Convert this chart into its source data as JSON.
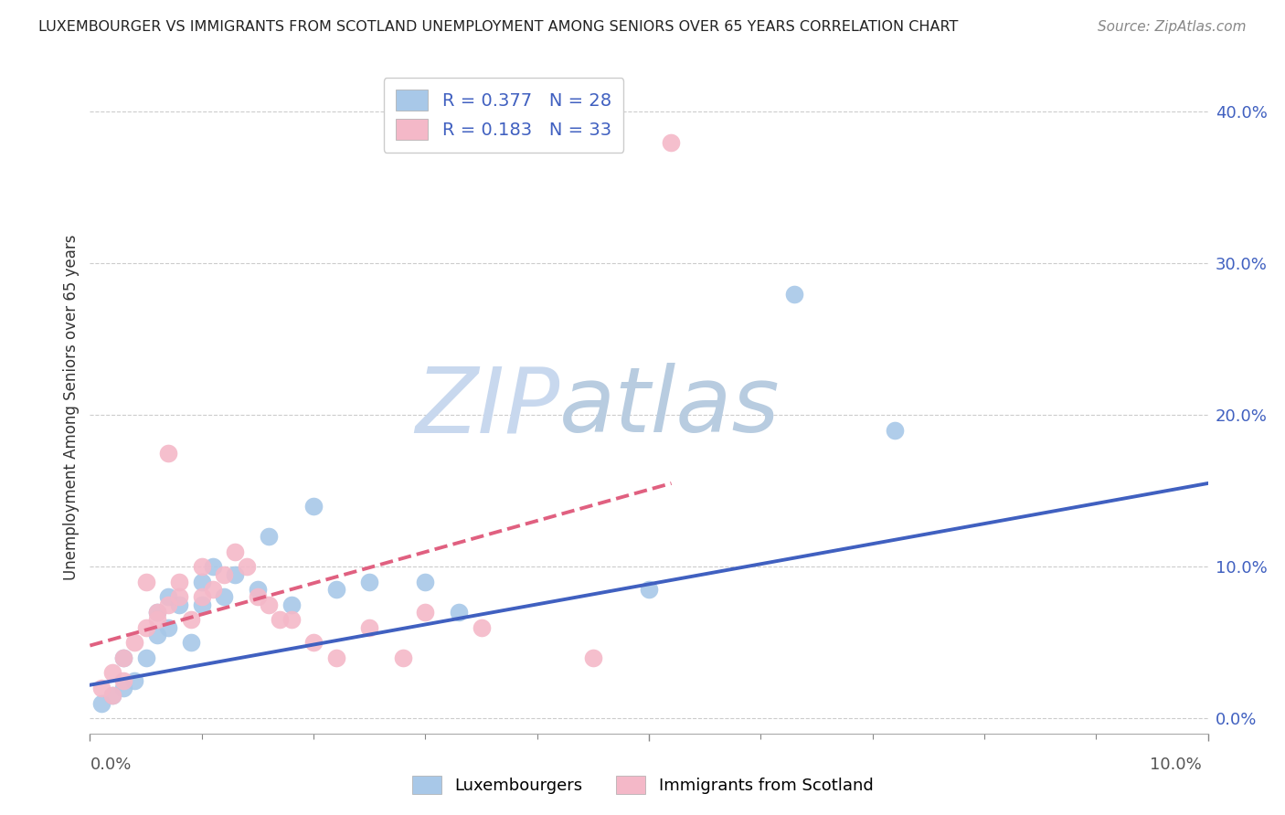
{
  "title": "LUXEMBOURGER VS IMMIGRANTS FROM SCOTLAND UNEMPLOYMENT AMONG SENIORS OVER 65 YEARS CORRELATION CHART",
  "source": "Source: ZipAtlas.com",
  "ylabel": "Unemployment Among Seniors over 65 years",
  "xlim": [
    0.0,
    0.1
  ],
  "ylim": [
    -0.01,
    0.42
  ],
  "yticks": [
    0.0,
    0.1,
    0.2,
    0.3,
    0.4
  ],
  "ytick_labels": [
    "0.0%",
    "10.0%",
    "20.0%",
    "30.0%",
    "40.0%"
  ],
  "xtick_labels": [
    "0.0%",
    "10.0%"
  ],
  "legend_labels": [
    "Luxembourgers",
    "Immigrants from Scotland"
  ],
  "r_blue": 0.377,
  "n_blue": 28,
  "r_pink": 0.183,
  "n_pink": 33,
  "blue_color": "#a8c8e8",
  "pink_color": "#f4b8c8",
  "blue_line_color": "#4060c0",
  "pink_line_color": "#e06080",
  "watermark_zip": "ZIP",
  "watermark_atlas": "atlas",
  "watermark_color_zip": "#c8d8ee",
  "watermark_color_atlas": "#b8cce0",
  "blue_scatter_x": [
    0.001,
    0.002,
    0.003,
    0.003,
    0.004,
    0.005,
    0.006,
    0.006,
    0.007,
    0.007,
    0.008,
    0.009,
    0.01,
    0.01,
    0.011,
    0.012,
    0.013,
    0.015,
    0.016,
    0.018,
    0.02,
    0.022,
    0.025,
    0.03,
    0.033,
    0.05,
    0.063,
    0.072
  ],
  "blue_scatter_y": [
    0.01,
    0.015,
    0.02,
    0.04,
    0.025,
    0.04,
    0.055,
    0.07,
    0.06,
    0.08,
    0.075,
    0.05,
    0.075,
    0.09,
    0.1,
    0.08,
    0.095,
    0.085,
    0.12,
    0.075,
    0.14,
    0.085,
    0.09,
    0.09,
    0.07,
    0.085,
    0.28,
    0.19
  ],
  "pink_scatter_x": [
    0.001,
    0.002,
    0.002,
    0.003,
    0.003,
    0.004,
    0.005,
    0.005,
    0.006,
    0.006,
    0.007,
    0.007,
    0.008,
    0.008,
    0.009,
    0.01,
    0.01,
    0.011,
    0.012,
    0.013,
    0.014,
    0.015,
    0.016,
    0.017,
    0.018,
    0.02,
    0.022,
    0.025,
    0.028,
    0.03,
    0.035,
    0.045,
    0.052
  ],
  "pink_scatter_y": [
    0.02,
    0.015,
    0.03,
    0.025,
    0.04,
    0.05,
    0.06,
    0.09,
    0.07,
    0.065,
    0.075,
    0.175,
    0.09,
    0.08,
    0.065,
    0.08,
    0.1,
    0.085,
    0.095,
    0.11,
    0.1,
    0.08,
    0.075,
    0.065,
    0.065,
    0.05,
    0.04,
    0.06,
    0.04,
    0.07,
    0.06,
    0.04,
    0.38
  ],
  "blue_trend_x": [
    0.0,
    0.1
  ],
  "blue_trend_y": [
    0.022,
    0.155
  ],
  "pink_trend_x": [
    0.0,
    0.052
  ],
  "pink_trend_y": [
    0.048,
    0.155
  ],
  "background_color": "#ffffff",
  "grid_color": "#cccccc"
}
